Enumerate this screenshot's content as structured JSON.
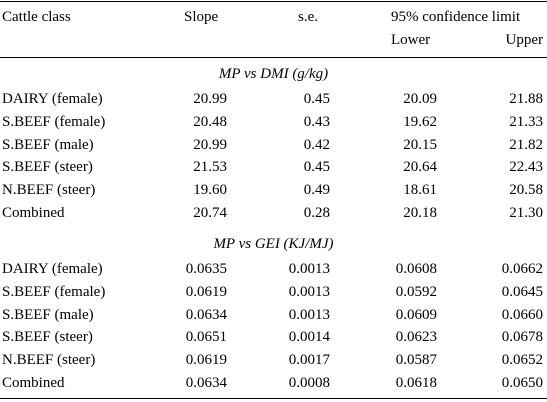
{
  "header": {
    "cattle_class": "Cattle class",
    "slope": "Slope",
    "se": "s.e.",
    "ci": "95% confidence limit",
    "lower": "Lower",
    "upper": "Upper"
  },
  "sections": [
    {
      "title": "MP vs DMI (g/kg)",
      "rows": [
        {
          "cls": "DAIRY (female)",
          "slope": "20.99",
          "se": "0.45",
          "lower": "20.09",
          "upper": "21.88"
        },
        {
          "cls": "S.BEEF (female)",
          "slope": "20.48",
          "se": "0.43",
          "lower": "19.62",
          "upper": "21.33"
        },
        {
          "cls": "S.BEEF (male)",
          "slope": "20.99",
          "se": "0.42",
          "lower": "20.15",
          "upper": "21.82"
        },
        {
          "cls": "S.BEEF (steer)",
          "slope": "21.53",
          "se": "0.45",
          "lower": "20.64",
          "upper": "22.43"
        },
        {
          "cls": "N.BEEF (steer)",
          "slope": "19.60",
          "se": "0.49",
          "lower": "18.61",
          "upper": "20.58"
        },
        {
          "cls": "Combined",
          "slope": "20.74",
          "se": "0.28",
          "lower": "20.18",
          "upper": "21.30"
        }
      ]
    },
    {
      "title": "MP vs GEI (KJ/MJ)",
      "rows": [
        {
          "cls": "DAIRY (female)",
          "slope": "0.0635",
          "se": "0.0013",
          "lower": "0.0608",
          "upper": "0.0662"
        },
        {
          "cls": "S.BEEF (female)",
          "slope": "0.0619",
          "se": "0.0013",
          "lower": "0.0592",
          "upper": "0.0645"
        },
        {
          "cls": "S.BEEF (male)",
          "slope": "0.0634",
          "se": "0.0013",
          "lower": "0.0609",
          "upper": "0.0660"
        },
        {
          "cls": "S.BEEF (steer)",
          "slope": "0.0651",
          "se": "0.0014",
          "lower": "0.0623",
          "upper": "0.0678"
        },
        {
          "cls": "N.BEEF (steer)",
          "slope": "0.0619",
          "se": "0.0017",
          "lower": "0.0587",
          "upper": "0.0652"
        },
        {
          "cls": "Combined",
          "slope": "0.0634",
          "se": "0.0008",
          "lower": "0.0618",
          "upper": "0.0650"
        }
      ]
    }
  ]
}
